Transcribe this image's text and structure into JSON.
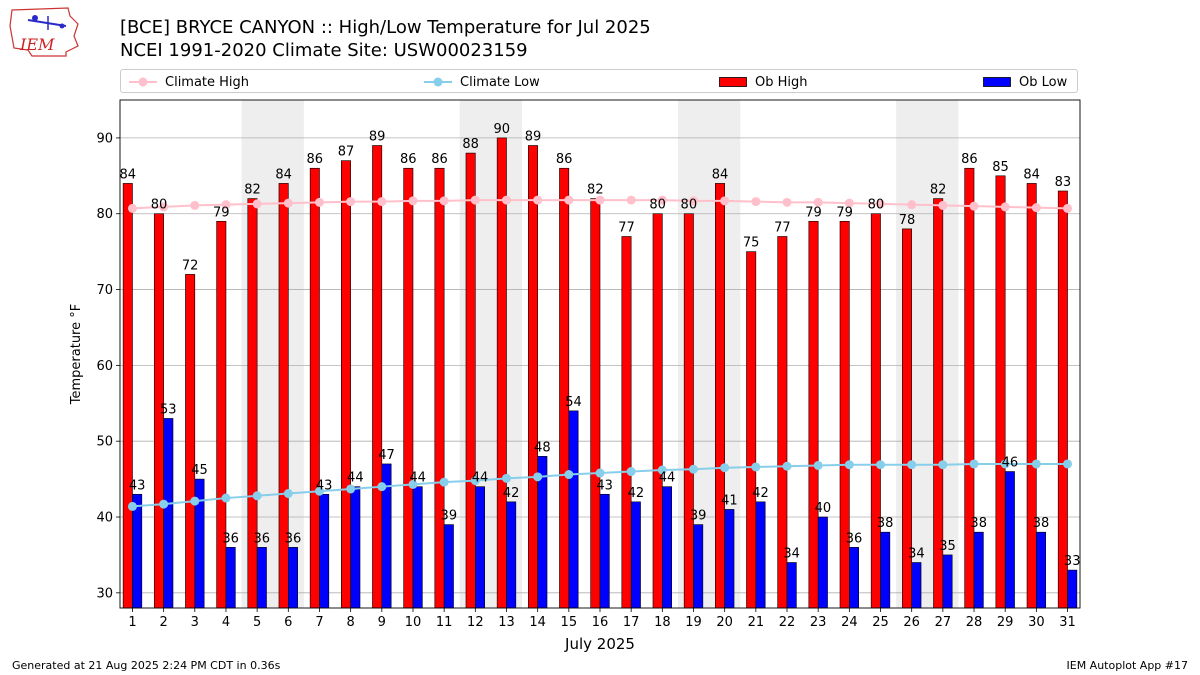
{
  "header": {
    "title_line1": "[BCE] BRYCE CANYON :: High/Low Temperature for Jul 2025",
    "title_line2": "NCEI 1991-2020 Climate Site: USW00023159",
    "logo_text": "IEM"
  },
  "footer": {
    "generated": "Generated at 21 Aug 2025 2:24 PM CDT in 0.36s",
    "app": "IEM Autoplot App #17"
  },
  "chart_data": {
    "type": "bar",
    "xlabel": "July 2025",
    "ylabel": "Temperature °F",
    "ylim": [
      28,
      95
    ],
    "yticks": [
      30,
      40,
      50,
      60,
      70,
      80,
      90
    ],
    "grid": "horizontal",
    "legend_placement": "top",
    "weekend_shading": [
      [
        5,
        6
      ],
      [
        12,
        13
      ],
      [
        19,
        20
      ],
      [
        26,
        27
      ]
    ],
    "categories": [
      "1",
      "2",
      "3",
      "4",
      "5",
      "6",
      "7",
      "8",
      "9",
      "10",
      "11",
      "12",
      "13",
      "14",
      "15",
      "16",
      "17",
      "18",
      "19",
      "20",
      "21",
      "22",
      "23",
      "24",
      "25",
      "26",
      "27",
      "28",
      "29",
      "30",
      "31"
    ],
    "series": [
      {
        "name": "Climate High",
        "kind": "line",
        "color": "#ffc0cb",
        "values": [
          80.7,
          80.9,
          81.1,
          81.2,
          81.3,
          81.4,
          81.5,
          81.6,
          81.6,
          81.7,
          81.7,
          81.8,
          81.8,
          81.8,
          81.8,
          81.8,
          81.8,
          81.8,
          81.7,
          81.7,
          81.6,
          81.5,
          81.5,
          81.4,
          81.3,
          81.2,
          81.1,
          81.0,
          80.9,
          80.8,
          80.7
        ]
      },
      {
        "name": "Climate Low",
        "kind": "line",
        "color": "#87ceeb",
        "values": [
          41.4,
          41.7,
          42.1,
          42.5,
          42.8,
          43.1,
          43.4,
          43.7,
          44.0,
          44.3,
          44.6,
          44.8,
          45.1,
          45.3,
          45.6,
          45.8,
          46.0,
          46.2,
          46.3,
          46.5,
          46.6,
          46.7,
          46.8,
          46.9,
          46.9,
          46.9,
          46.9,
          47.0,
          47.0,
          47.0,
          47.0
        ]
      },
      {
        "name": "Ob High",
        "kind": "bar",
        "color": "#ff0000",
        "values": [
          84,
          80,
          72,
          79,
          82,
          84,
          86,
          87,
          89,
          86,
          86,
          88,
          90,
          89,
          86,
          82,
          77,
          80,
          80,
          84,
          75,
          77,
          79,
          79,
          80,
          78,
          82,
          86,
          85,
          84,
          83
        ]
      },
      {
        "name": "Ob Low",
        "kind": "bar",
        "color": "#0000ff",
        "values": [
          43,
          53,
          45,
          36,
          36,
          36,
          43,
          44,
          47,
          44,
          39,
          44,
          42,
          48,
          54,
          43,
          42,
          44,
          39,
          41,
          42,
          34,
          40,
          36,
          38,
          34,
          35,
          38,
          46,
          38,
          33
        ]
      }
    ]
  }
}
